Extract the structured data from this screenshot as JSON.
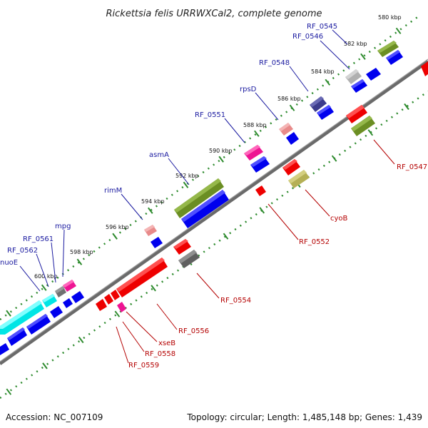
{
  "title": "Rickettsia felis URRWXCal2, complete genome",
  "footer": {
    "accession": "Accession: NC_007109",
    "summary": "Topology: circular; Length: 1,485,148 bp; Genes: 1,439"
  },
  "scale_labels": [
    "580 kbp",
    "582 kbp",
    "584 kbp",
    "586 kbp",
    "588 kbp",
    "590 kbp",
    "592 kbp",
    "594 kbp",
    "596 kbp",
    "598 kbp",
    "600 kbp"
  ],
  "outer_labels": [
    "RF_0545",
    "RF_0546",
    "RF_0548",
    "rpsD",
    "RF_0551",
    "asmA",
    "rimM",
    "mpg",
    "RF_0561",
    "RF_0562",
    "nuoE"
  ],
  "inner_labels": [
    "RF_0547",
    "cyoB",
    "RF_0552",
    "RF_0554",
    "RF_0556",
    "xseB",
    "RF_0558",
    "RF_0559"
  ],
  "colors": {
    "backbone": "#707070",
    "tick": "#2e8b2e",
    "outer_label": "#1a1aa0",
    "inner_label": "#b40000",
    "cds_forward": "#0000ee",
    "cds_reverse": "#ee0000",
    "cog_olive": "#6b8e23",
    "cog_khaki": "#b5b055",
    "cog_cyan": "#00e5e5",
    "cog_magenta": "#ee1493",
    "cog_pink": "#e88a8a",
    "cog_navy": "#3c3c8c",
    "cog_grey": "#a0a0a0",
    "cog_dark_grey": "#606060"
  }
}
